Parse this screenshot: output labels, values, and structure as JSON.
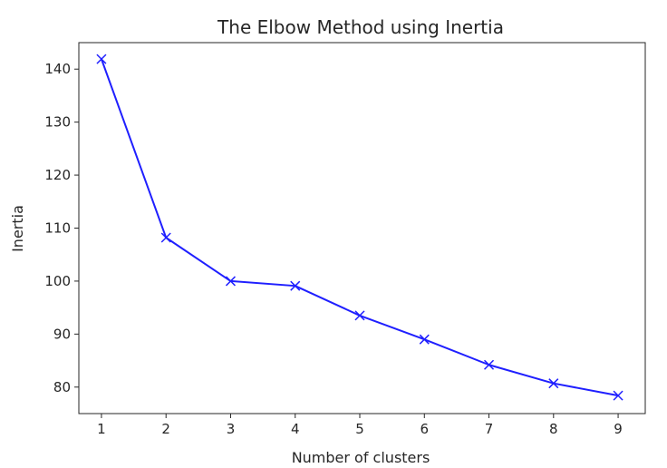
{
  "chart_data": {
    "type": "line",
    "title": "The Elbow Method using Inertia",
    "xlabel": "Number of clusters",
    "ylabel": "Inertia",
    "x": [
      1,
      2,
      3,
      4,
      5,
      6,
      7,
      8,
      9
    ],
    "xticks": [
      "1",
      "2",
      "3",
      "4",
      "5",
      "6",
      "7",
      "8",
      "9"
    ],
    "yticks": [
      "80",
      "90",
      "100",
      "110",
      "120",
      "130",
      "140"
    ],
    "xlim": [
      0.65,
      9.42
    ],
    "ylim": [
      75.0,
      145.0
    ],
    "grid": false,
    "marker": "x",
    "series": [
      {
        "values": [
          141.9,
          108.2,
          100.0,
          99.1,
          93.5,
          89.0,
          84.2,
          80.7,
          78.4
        ],
        "color": "#1f1fff"
      }
    ]
  }
}
